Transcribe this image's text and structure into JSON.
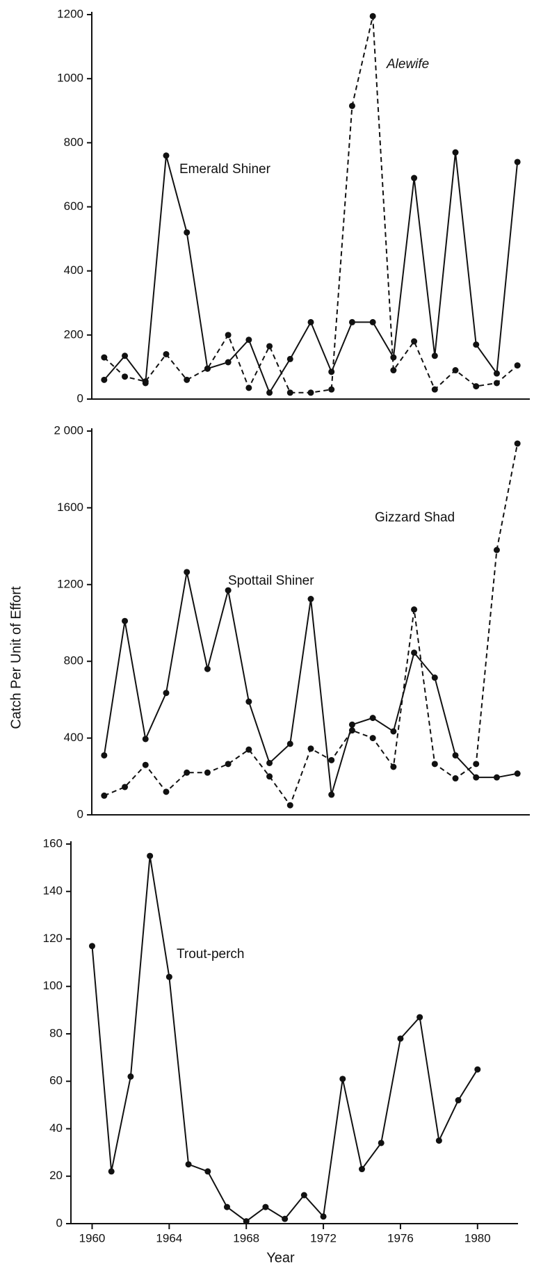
{
  "chart_data": [
    {
      "type": "line",
      "x": [
        1961,
        1962,
        1963,
        1964,
        1965,
        1966,
        1967,
        1968,
        1969,
        1970,
        1971,
        1972,
        1973,
        1974,
        1975,
        1976,
        1977,
        1978,
        1979,
        1980,
        1981
      ],
      "xlim": [
        1960.4,
        1981.6
      ],
      "ylim": [
        0,
        1200
      ],
      "yticks": [
        0,
        200,
        400,
        600,
        800,
        1000,
        1200
      ],
      "series": [
        {
          "name": "Emerald Shiner",
          "color": "#111111",
          "dash": false,
          "values": [
            60,
            135,
            50,
            760,
            520,
            95,
            115,
            185,
            20,
            125,
            240,
            85,
            240,
            240,
            130,
            690,
            135,
            770,
            170,
            80,
            740
          ]
        },
        {
          "name": "Alewife",
          "color": "#111111",
          "dash": true,
          "values": [
            130,
            70,
            55,
            140,
            60,
            95,
            200,
            35,
            165,
            20,
            20,
            30,
            915,
            1195,
            90,
            180,
            30,
            90,
            40,
            50,
            105
          ]
        }
      ]
    },
    {
      "type": "line",
      "x": [
        1961,
        1962,
        1963,
        1964,
        1965,
        1966,
        1967,
        1968,
        1969,
        1970,
        1971,
        1972,
        1973,
        1974,
        1975,
        1976,
        1977,
        1978,
        1979,
        1980,
        1981
      ],
      "xlim": [
        1960.4,
        1981.6
      ],
      "ylim": [
        0,
        2000
      ],
      "yticks": [
        0,
        400,
        800,
        1200,
        1600,
        {
          "value": 2000,
          "label": "2 000"
        }
      ],
      "ylabel": "Catch Per Unit of Effort",
      "series": [
        {
          "name": "Spottail Shiner",
          "color": "#111111",
          "dash": false,
          "values": [
            310,
            1010,
            395,
            635,
            1265,
            760,
            1170,
            590,
            270,
            370,
            1125,
            105,
            470,
            505,
            435,
            845,
            715,
            310,
            195,
            195,
            215
          ]
        },
        {
          "name": "Gizzard Shad",
          "color": "#111111",
          "dash": true,
          "values": [
            100,
            145,
            260,
            120,
            220,
            220,
            265,
            340,
            200,
            50,
            345,
            285,
            440,
            400,
            250,
            1070,
            265,
            190,
            265,
            1380,
            1935
          ]
        }
      ]
    },
    {
      "type": "line",
      "x": [
        1960,
        1961,
        1962,
        1963,
        1964,
        1965,
        1966,
        1967,
        1968,
        1969,
        1970,
        1971,
        1972,
        1973,
        1974,
        1975,
        1976,
        1977,
        1978,
        1979,
        1980
      ],
      "xlim": [
        1958.9,
        1982.1
      ],
      "xticks": [
        1960,
        1964,
        1968,
        1972,
        1976,
        1980
      ],
      "xlabel": "Year",
      "ylim": [
        0,
        160
      ],
      "yticks": [
        0,
        20,
        40,
        60,
        80,
        100,
        120,
        140,
        160
      ],
      "series": [
        {
          "name": "Trout-perch",
          "color": "#111111",
          "dash": false,
          "values": [
            117,
            22,
            62,
            155,
            104,
            25,
            22,
            7,
            1,
            7,
            2,
            12,
            3,
            61,
            23,
            34,
            78,
            87,
            35,
            52,
            65
          ]
        }
      ]
    }
  ]
}
